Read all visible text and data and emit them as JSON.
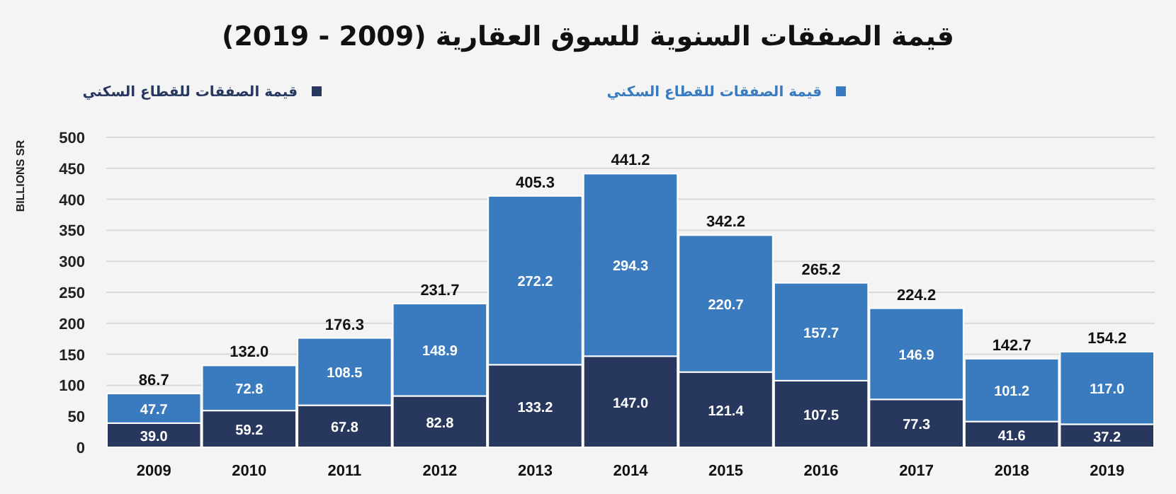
{
  "chart_data": {
    "type": "bar",
    "stacked": true,
    "title": "قيمة الصفقات السنوية للسوق العقارية (2009 - 2019)",
    "ylabel": "BILLIONS SR",
    "categories": [
      "2009",
      "2010",
      "2011",
      "2012",
      "2013",
      "2014",
      "2015",
      "2016",
      "2017",
      "2018",
      "2019"
    ],
    "series": [
      {
        "name": "قيمة الصفقات للقطاع السكني",
        "color": "#27375e",
        "values": [
          39.0,
          59.2,
          67.8,
          82.8,
          133.2,
          147.0,
          121.4,
          107.5,
          77.3,
          41.6,
          37.2
        ],
        "value_labels": [
          "39.0",
          "59.2",
          "67.8",
          "82.8",
          "133.2",
          "147.0",
          "121.4",
          "107.5",
          "77.3",
          "41.6",
          "37.2"
        ]
      },
      {
        "name": "قيمة الصفقات للقطاع السكني",
        "color": "#3a7bbf",
        "values": [
          47.7,
          72.8,
          108.5,
          148.9,
          272.2,
          294.3,
          220.7,
          157.7,
          146.9,
          101.2,
          117.0
        ],
        "value_labels": [
          "47.7",
          "72.8",
          "108.5",
          "148.9",
          "272.2",
          "294.3",
          "220.7",
          "157.7",
          "146.9",
          "101.2",
          "117.0"
        ]
      }
    ],
    "totals": [
      "86.7",
      "132.0",
      "176.3",
      "231.7",
      "405.3",
      "441.2",
      "342.2",
      "265.2",
      "224.2",
      "142.7",
      "154.2"
    ],
    "ylim": [
      0,
      500
    ],
    "yticks": [
      0,
      50,
      100,
      150,
      200,
      250,
      300,
      350,
      400,
      450,
      500
    ],
    "grid": "y",
    "legend": "top"
  }
}
